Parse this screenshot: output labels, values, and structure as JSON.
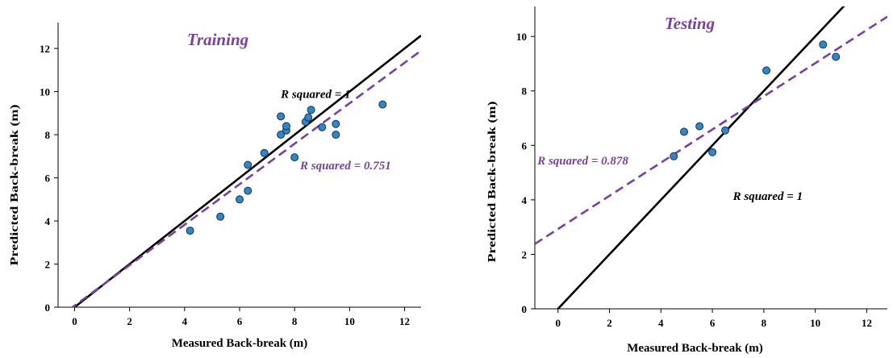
{
  "chart_data": [
    {
      "type": "scatter",
      "title": "Training",
      "xlabel": "Measured Back-break (m)",
      "ylabel": "Predicted Back-break (m)",
      "xlim": [
        -0.6,
        12.6
      ],
      "ylim": [
        0,
        13.2
      ],
      "xticks": [
        0,
        2,
        4,
        6,
        8,
        10,
        12
      ],
      "yticks": [
        0,
        2,
        4,
        6,
        8,
        10,
        12
      ],
      "grid": false,
      "points": [
        {
          "x": 4.2,
          "y": 3.55
        },
        {
          "x": 5.3,
          "y": 4.2
        },
        {
          "x": 6.0,
          "y": 5.0
        },
        {
          "x": 6.3,
          "y": 5.4
        },
        {
          "x": 6.3,
          "y": 6.6
        },
        {
          "x": 6.9,
          "y": 7.15
        },
        {
          "x": 7.5,
          "y": 8.0
        },
        {
          "x": 7.5,
          "y": 8.85
        },
        {
          "x": 7.7,
          "y": 8.2
        },
        {
          "x": 7.7,
          "y": 8.4
        },
        {
          "x": 8.0,
          "y": 6.95
        },
        {
          "x": 8.4,
          "y": 8.6
        },
        {
          "x": 8.5,
          "y": 8.8
        },
        {
          "x": 8.6,
          "y": 9.15
        },
        {
          "x": 9.0,
          "y": 8.35
        },
        {
          "x": 9.5,
          "y": 8.5
        },
        {
          "x": 9.5,
          "y": 8.0
        },
        {
          "x": 11.2,
          "y": 9.4
        }
      ],
      "lines": [
        {
          "name": "R squared = 1",
          "slope": 1.0,
          "intercept": 0.0,
          "color": "#000000",
          "dashed": false,
          "label_x": 7.5,
          "label_y": 9.7
        },
        {
          "name": "R squared = 0.751",
          "slope": 0.939,
          "intercept": 0.07,
          "color": "#7b3fa0",
          "dashed": true,
          "label_x": 8.2,
          "label_y": 6.4
        }
      ],
      "title_color": "#7b3fa0"
    },
    {
      "type": "scatter",
      "title": "Testing",
      "xlabel": "Measured Back-break (m)",
      "ylabel": "Predicted Back-break (m)",
      "xlim": [
        -0.9,
        12.8
      ],
      "ylim": [
        0,
        11.1
      ],
      "xticks": [
        0,
        2,
        4,
        6,
        8,
        10,
        12
      ],
      "yticks": [
        0,
        2,
        4,
        6,
        8,
        10
      ],
      "grid": false,
      "points": [
        {
          "x": 4.5,
          "y": 5.6
        },
        {
          "x": 4.9,
          "y": 6.5
        },
        {
          "x": 5.5,
          "y": 6.7
        },
        {
          "x": 6.0,
          "y": 5.75
        },
        {
          "x": 6.5,
          "y": 6.55
        },
        {
          "x": 8.1,
          "y": 8.75
        },
        {
          "x": 10.3,
          "y": 9.7
        },
        {
          "x": 10.8,
          "y": 9.25
        }
      ],
      "lines": [
        {
          "name": "R squared = 1",
          "slope": 1.0,
          "intercept": 0.0,
          "color": "#000000",
          "dashed": false,
          "label_x": 6.8,
          "label_y": 4.0
        },
        {
          "name": "R squared = 0.878",
          "slope": 0.609,
          "intercept": 2.93,
          "color": "#7b3fa0",
          "dashed": true,
          "label_x": -0.8,
          "label_y": 5.3
        }
      ],
      "title_color": "#7b3fa0"
    }
  ],
  "colors": {
    "point_fill": "#2f86c8",
    "point_stroke": "#17324d",
    "axis": "#000000"
  }
}
